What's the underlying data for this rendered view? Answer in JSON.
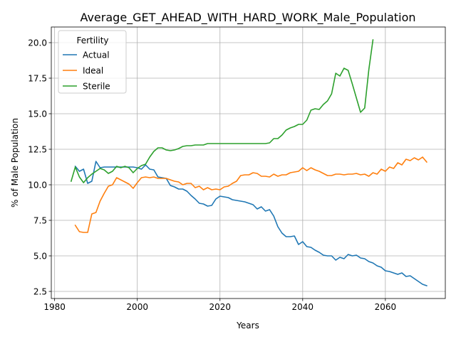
{
  "chart_data": {
    "type": "line",
    "title": "Average_GET_AHEAD_WITH_HARD_WORK_Male_Population",
    "xlabel": "Years",
    "ylabel": "% of Male Population",
    "xlim": [
      1979.2,
      2074.5
    ],
    "ylim": [
      2.0,
      21.1
    ],
    "xticks": [
      1980,
      2000,
      2020,
      2040,
      2060
    ],
    "xtick_labels": [
      "1980",
      "2000",
      "2020",
      "2040",
      "2060"
    ],
    "yticks": [
      2.5,
      5.0,
      7.5,
      10.0,
      12.5,
      15.0,
      17.5,
      20.0
    ],
    "ytick_labels": [
      "2.5",
      "5.0",
      "7.5",
      "10.0",
      "12.5",
      "15.0",
      "17.5",
      "20.0"
    ],
    "grid": true,
    "legend": {
      "title": "Fertility",
      "position": "top-left"
    },
    "series": [
      {
        "name": "Actual",
        "color": "#1f77b4",
        "x": [
          1985,
          1986,
          1987,
          1988,
          1989,
          1990,
          1991,
          1992,
          1993,
          1994,
          1995,
          1996,
          1997,
          1998,
          1999,
          2000,
          2001,
          2002,
          2003,
          2004,
          2005,
          2006,
          2007,
          2008,
          2009,
          2010,
          2011,
          2012,
          2013,
          2014,
          2015,
          2016,
          2017,
          2018,
          2019,
          2020,
          2021,
          2022,
          2023,
          2024,
          2025,
          2026,
          2027,
          2028,
          2029,
          2030,
          2031,
          2032,
          2033,
          2034,
          2035,
          2036,
          2037,
          2038,
          2039,
          2040,
          2041,
          2042,
          2043,
          2044,
          2045,
          2046,
          2047,
          2048,
          2049,
          2050,
          2051,
          2052,
          2053,
          2054,
          2055,
          2056,
          2057,
          2058,
          2059,
          2060,
          2061,
          2062,
          2063,
          2064,
          2065,
          2066,
          2067,
          2068,
          2069,
          2070
        ],
        "values": [
          11.3,
          10.95,
          11.1,
          10.1,
          10.25,
          11.65,
          11.2,
          11.25,
          11.25,
          11.25,
          11.25,
          11.25,
          11.25,
          11.25,
          11.25,
          11.2,
          11.1,
          11.4,
          11.1,
          11.05,
          10.55,
          10.5,
          10.45,
          9.95,
          9.85,
          9.7,
          9.7,
          9.55,
          9.25,
          9.0,
          8.7,
          8.65,
          8.5,
          8.55,
          9.0,
          9.2,
          9.15,
          9.1,
          8.95,
          8.9,
          8.85,
          8.8,
          8.7,
          8.6,
          8.3,
          8.45,
          8.15,
          8.25,
          7.8,
          7.05,
          6.6,
          6.35,
          6.35,
          6.4,
          5.8,
          6.0,
          5.65,
          5.6,
          5.4,
          5.25,
          5.05,
          5.0,
          5.0,
          4.7,
          4.9,
          4.8,
          5.1,
          5.0,
          5.05,
          4.85,
          4.8,
          4.6,
          4.5,
          4.3,
          4.2,
          3.95,
          3.9,
          3.8,
          3.7,
          3.8,
          3.55,
          3.6,
          3.4,
          3.2,
          3.0,
          2.9
        ]
      },
      {
        "name": "Ideal",
        "color": "#ff7f0e",
        "x": [
          1985,
          1986,
          1987,
          1988,
          1989,
          1990,
          1991,
          1992,
          1993,
          1994,
          1995,
          1996,
          1997,
          1998,
          1999,
          2000,
          2001,
          2002,
          2003,
          2004,
          2005,
          2006,
          2007,
          2008,
          2009,
          2010,
          2011,
          2012,
          2013,
          2014,
          2015,
          2016,
          2017,
          2018,
          2019,
          2020,
          2021,
          2022,
          2023,
          2024,
          2025,
          2026,
          2027,
          2028,
          2029,
          2030,
          2031,
          2032,
          2033,
          2034,
          2035,
          2036,
          2037,
          2038,
          2039,
          2040,
          2041,
          2042,
          2043,
          2044,
          2045,
          2046,
          2047,
          2048,
          2049,
          2050,
          2051,
          2052,
          2053,
          2054,
          2055,
          2056,
          2057,
          2058,
          2059,
          2060,
          2061,
          2062,
          2063,
          2064,
          2065,
          2066,
          2067,
          2068,
          2069,
          2070
        ],
        "values": [
          7.15,
          6.7,
          6.65,
          6.65,
          7.95,
          8.05,
          8.85,
          9.4,
          9.9,
          10.0,
          10.5,
          10.35,
          10.2,
          10.05,
          9.75,
          10.15,
          10.5,
          10.55,
          10.5,
          10.55,
          10.45,
          10.45,
          10.45,
          10.35,
          10.25,
          10.2,
          10.0,
          10.1,
          10.1,
          9.8,
          9.9,
          9.65,
          9.8,
          9.65,
          9.7,
          9.65,
          9.85,
          9.9,
          10.1,
          10.25,
          10.65,
          10.7,
          10.7,
          10.85,
          10.8,
          10.6,
          10.6,
          10.55,
          10.75,
          10.6,
          10.7,
          10.7,
          10.85,
          10.9,
          10.95,
          11.2,
          11.0,
          11.2,
          11.05,
          10.95,
          10.8,
          10.65,
          10.65,
          10.75,
          10.75,
          10.7,
          10.75,
          10.75,
          10.8,
          10.7,
          10.75,
          10.6,
          10.85,
          10.75,
          11.1,
          10.95,
          11.25,
          11.15,
          11.55,
          11.4,
          11.8,
          11.7,
          11.9,
          11.75,
          11.95,
          11.6
        ]
      },
      {
        "name": "Sterile",
        "color": "#2ca02c",
        "x": [
          1984,
          1985,
          1986,
          1987,
          1988,
          1989,
          1990,
          1991,
          1992,
          1993,
          1994,
          1995,
          1996,
          1997,
          1998,
          1999,
          2000,
          2001,
          2002,
          2003,
          2004,
          2005,
          2006,
          2007,
          2008,
          2009,
          2010,
          2011,
          2012,
          2013,
          2014,
          2015,
          2016,
          2017,
          2018,
          2019,
          2020,
          2021,
          2022,
          2023,
          2024,
          2025,
          2026,
          2027,
          2028,
          2029,
          2030,
          2031,
          2032,
          2033,
          2034,
          2035,
          2036,
          2037,
          2038,
          2039,
          2040,
          2041,
          2042,
          2043,
          2044,
          2045,
          2046,
          2047,
          2048,
          2049,
          2050,
          2051,
          2052,
          2053,
          2054,
          2055,
          2056,
          2057
        ],
        "values": [
          10.25,
          11.25,
          10.55,
          10.15,
          10.5,
          10.75,
          10.95,
          11.15,
          11.05,
          10.8,
          10.95,
          11.3,
          11.2,
          11.3,
          11.2,
          10.85,
          11.15,
          11.35,
          11.45,
          11.95,
          12.35,
          12.6,
          12.6,
          12.45,
          12.4,
          12.45,
          12.55,
          12.7,
          12.75,
          12.75,
          12.8,
          12.8,
          12.8,
          12.9,
          12.9,
          12.9,
          12.9,
          12.9,
          12.9,
          12.9,
          12.9,
          12.9,
          12.9,
          12.9,
          12.9,
          12.9,
          12.9,
          12.9,
          12.95,
          13.25,
          13.25,
          13.5,
          13.85,
          14.0,
          14.1,
          14.25,
          14.25,
          14.55,
          15.25,
          15.35,
          15.3,
          15.65,
          15.9,
          16.4,
          17.85,
          17.65,
          18.2,
          18.05,
          17.1,
          16.1,
          15.1,
          15.4,
          18.1,
          20.2
        ]
      }
    ]
  }
}
